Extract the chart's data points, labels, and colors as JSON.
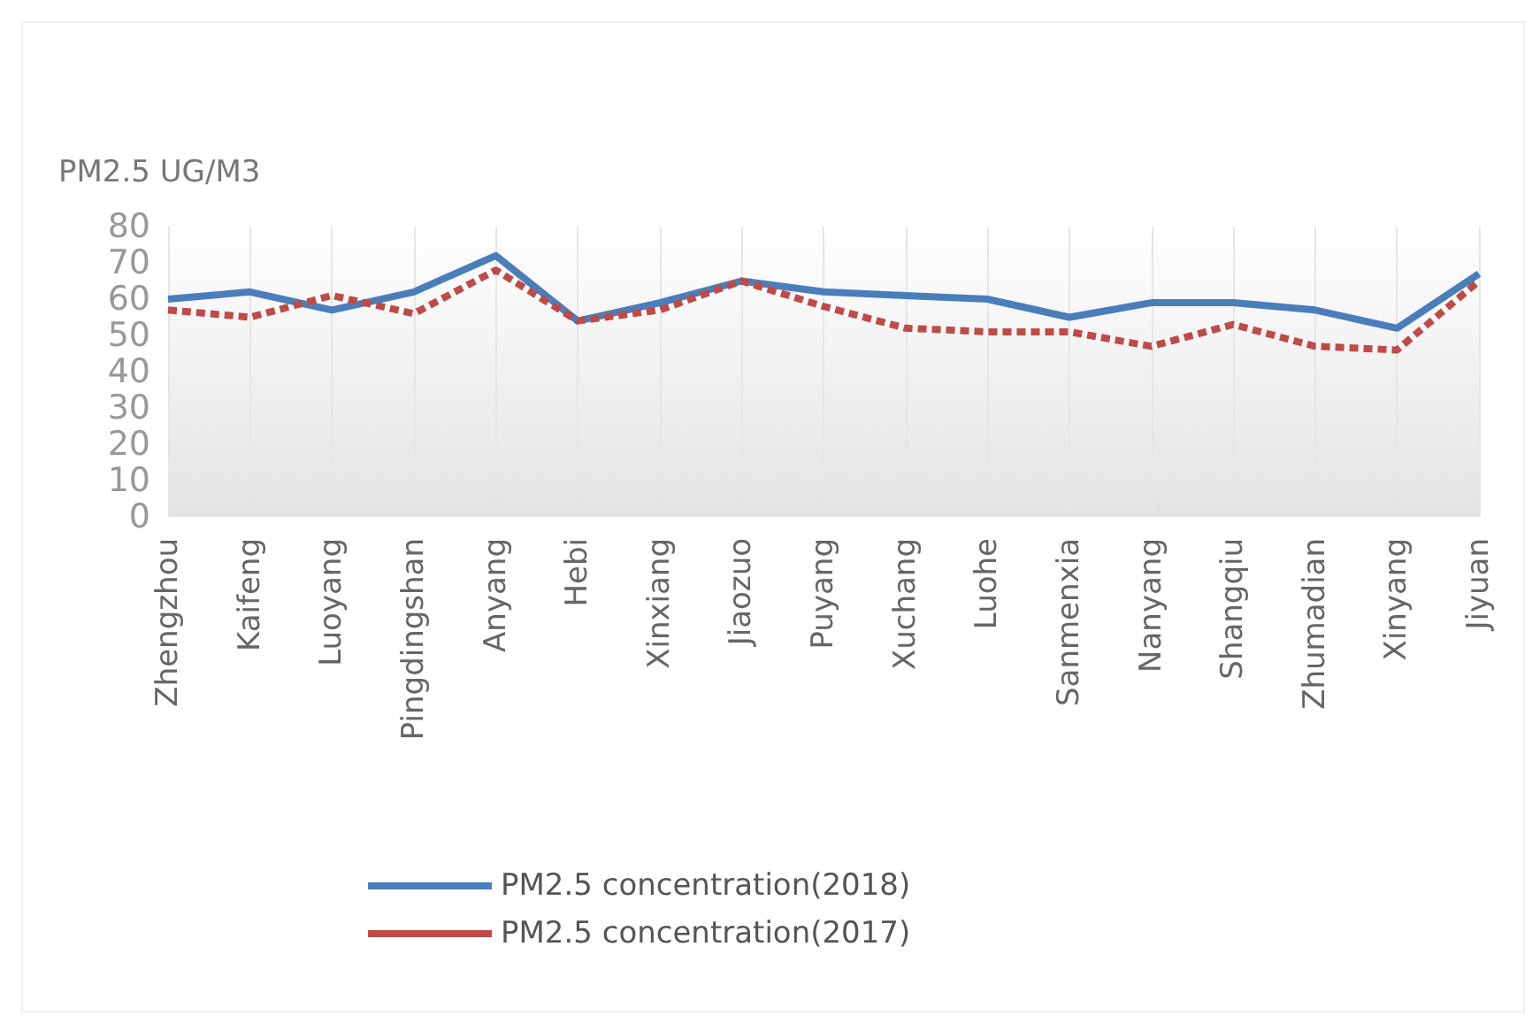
{
  "chart_data": {
    "type": "line",
    "ylabel": "PM2.5 UG/M3",
    "categories": [
      "Zhengzhou",
      "Kaifeng",
      "Luoyang",
      "Pingdingshan",
      "Anyang",
      "Hebi",
      "Xinxiang",
      "Jiaozuo",
      "Puyang",
      "Xuchang",
      "Luohe",
      "Sanmenxia",
      "Nanyang",
      "Shangqiu",
      "Zhumadian",
      "Xinyang",
      "Jiyuan"
    ],
    "series": [
      {
        "name": "PM2.5 concentration(2018)",
        "color": "#4a7ebb",
        "line_style": "solid",
        "values": [
          60,
          62,
          57,
          62,
          72,
          54,
          59,
          65,
          62,
          61,
          60,
          55,
          59,
          59,
          57,
          52,
          67
        ]
      },
      {
        "name": "PM2.5 concentration(2017)",
        "color": "#be4b48",
        "line_style": "dashed",
        "values": [
          57,
          55,
          61,
          56,
          68,
          54,
          57,
          65,
          58,
          52,
          51,
          51,
          47,
          53,
          47,
          46,
          65
        ]
      }
    ],
    "ylim": [
      0,
      80
    ],
    "yticks": [
      0,
      10,
      20,
      30,
      40,
      50,
      60,
      70,
      80
    ],
    "grid": "x",
    "legend": "bottom",
    "marker": "none"
  }
}
